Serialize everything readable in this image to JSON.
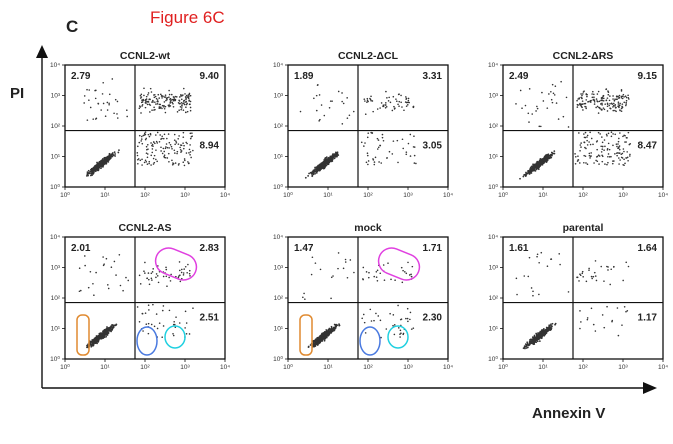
{
  "figure": {
    "title": "Figure 6C",
    "panel_letter": "C",
    "y_axis_title": "PI",
    "x_axis_title": "Annexin V"
  },
  "colors": {
    "title_red": "#e02020",
    "magenta": "#e040e0",
    "orange": "#e08a30",
    "blue": "#4a7ae0",
    "cyan": "#20d0e0"
  },
  "chart_data": {
    "type": "scatter",
    "axis_scale": "log",
    "x_range": [
      1,
      10000
    ],
    "y_range": [
      1,
      10000
    ],
    "tick_labels": [
      "10⁰",
      "10¹",
      "10²",
      "10³",
      "10⁴"
    ],
    "panels": [
      {
        "title": "CCNL2-wt",
        "upper_left": "2.79",
        "upper_right": "9.40",
        "lower_right": "8.94",
        "gates": []
      },
      {
        "title": "CCNL2-ΔCL",
        "upper_left": "1.89",
        "upper_right": "3.31",
        "lower_right": "3.05",
        "gates": []
      },
      {
        "title": "CCNL2-ΔRS",
        "upper_left": "2.49",
        "upper_right": "9.15",
        "lower_right": "8.47",
        "gates": []
      },
      {
        "title": "CCNL2-AS",
        "upper_left": "2.01",
        "upper_right": "2.83",
        "lower_right": "2.51",
        "gates": [
          "orange",
          "blue",
          "cyan",
          "magenta"
        ]
      },
      {
        "title": "mock",
        "upper_left": "1.47",
        "upper_right": "1.71",
        "lower_right": "2.30",
        "gates": [
          "orange",
          "blue",
          "cyan",
          "magenta"
        ]
      },
      {
        "title": "parental",
        "upper_left": "1.61",
        "upper_right": "1.64",
        "lower_right": "1.17",
        "gates": []
      }
    ]
  }
}
